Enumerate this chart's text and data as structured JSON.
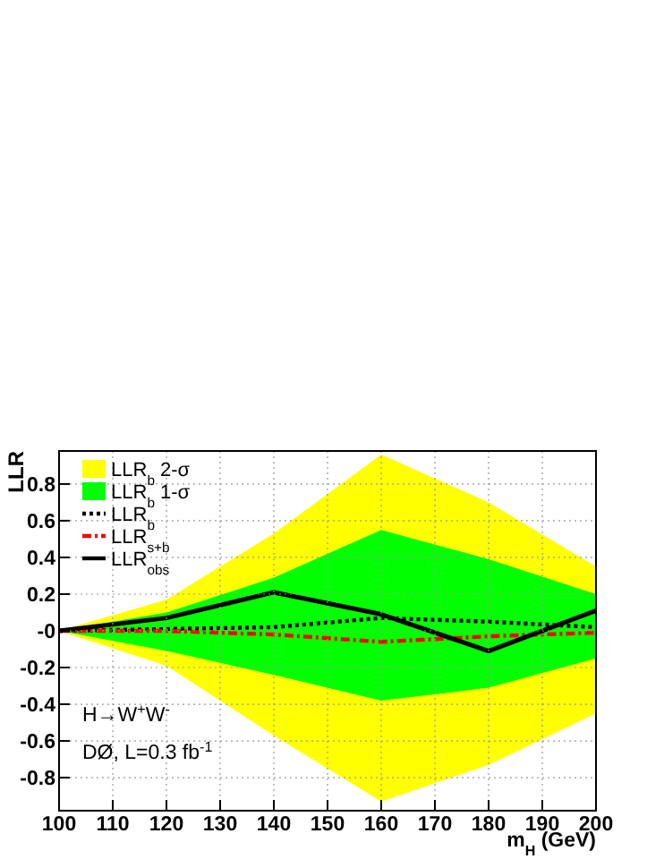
{
  "chart_data": {
    "type": "line",
    "xlabel": "m$_{H}$ (GeV)",
    "ylabel": "LLR",
    "x": [
      100,
      120,
      140,
      160,
      180,
      200
    ],
    "xlim": [
      100,
      200
    ],
    "xticks": [
      100,
      110,
      120,
      130,
      140,
      150,
      160,
      170,
      180,
      190,
      200
    ],
    "ylim": [
      -0.98,
      0.98
    ],
    "yticks": [
      {
        "value": -0.8,
        "label": "-0.8"
      },
      {
        "value": -0.6,
        "label": "-0.6"
      },
      {
        "value": -0.4,
        "label": "-0.4"
      },
      {
        "value": -0.2,
        "label": "-0.2"
      },
      {
        "value": 0,
        "label": "-0"
      },
      0.2,
      0.4,
      0.6,
      0.8
    ],
    "grid": true,
    "legend": "top left",
    "annotations": [
      "H→W$^{+}$W$^{-}$",
      "DØ, L=0.3 fb$^{-1}$"
    ],
    "series": [
      {
        "name": "LLR$_{b}$ 2-σ",
        "color": "#ffff00",
        "values": [
          null,
          null,
          null,
          null,
          null,
          null
        ],
        "lower": [
          0,
          -0.19,
          -0.57,
          -0.93,
          -0.73,
          -0.45
        ],
        "upper": [
          0,
          0.17,
          0.53,
          0.96,
          0.7,
          0.35
        ]
      },
      {
        "name": "LLR$_{b}$ 1-σ",
        "color": "#00ff00",
        "values": [
          null,
          null,
          null,
          null,
          null,
          null
        ],
        "lower": [
          0,
          -0.11,
          -0.24,
          -0.38,
          -0.31,
          -0.15
        ],
        "upper": [
          0,
          0.1,
          0.29,
          0.55,
          0.39,
          0.2
        ]
      },
      {
        "name": "LLR$_{b}$",
        "type": "line",
        "color": "#000000",
        "line_style": "dotted",
        "values": [
          0,
          0.01,
          0.02,
          0.07,
          0.05,
          0.02
        ]
      },
      {
        "name": "LLR$_{s+b}$",
        "type": "line",
        "color": "#ff0000",
        "line_style": "dashdot",
        "values": [
          0,
          0,
          -0.02,
          -0.06,
          -0.03,
          -0.01
        ]
      },
      {
        "name": "LLR$_{obs}$",
        "color": "#000000",
        "line_style": "solid",
        "values": [
          0,
          0.07,
          0.21,
          0.09,
          -0.11,
          0.11
        ]
      }
    ]
  }
}
